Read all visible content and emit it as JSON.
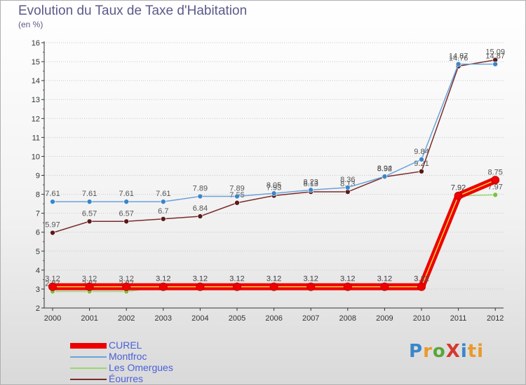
{
  "header": {
    "title": "Evolution du Taux de Taxe d'Habitation",
    "unit": "(en %)"
  },
  "logo": {
    "text": "ProXiti",
    "letters": [
      "P",
      "r",
      "o",
      "X",
      "i",
      "ti"
    ]
  },
  "colors": {
    "axis": "#333333",
    "tick_label": "#333333",
    "grid": "#c8c8c8",
    "value_label": "#555555"
  },
  "chart_data": {
    "type": "line",
    "x": [
      "2000",
      "2001",
      "2002",
      "2003",
      "2004",
      "2005",
      "2006",
      "2007",
      "2008",
      "2009",
      "2010",
      "2011",
      "2012"
    ],
    "ylim": [
      2,
      16
    ],
    "yticks": [
      2,
      3,
      4,
      5,
      6,
      7,
      8,
      9,
      10,
      11,
      12,
      13,
      14,
      15,
      16
    ],
    "grid": "horizontal",
    "legend_position": "bottom-left",
    "series": [
      {
        "name": "Éourres",
        "color": "#7a2b2b",
        "marker": "#5a1a1a",
        "values": [
          5.97,
          6.57,
          6.57,
          6.7,
          6.84,
          7.55,
          7.93,
          8.13,
          8.13,
          8.92,
          9.21,
          14.76,
          15.09
        ],
        "labels": [
          "5.97",
          "6.57",
          "6.57",
          "6.7",
          "6.84",
          "7.55",
          "7.93",
          "8.13",
          "8.13",
          "8.92",
          "9.21",
          "14.76",
          "15.09"
        ]
      },
      {
        "name": "Montfroc",
        "color": "#6aa3d9",
        "marker": "#3a86c8",
        "values": [
          7.61,
          7.61,
          7.61,
          7.61,
          7.89,
          7.89,
          8.05,
          8.23,
          8.36,
          8.94,
          9.84,
          14.87,
          14.87
        ],
        "labels": [
          "7.61",
          "7.61",
          "7.61",
          "7.61",
          "7.89",
          "7.89",
          "8.05",
          "8.23",
          "8.36",
          "8.94",
          "9.84",
          "14.87",
          "14.87"
        ]
      },
      {
        "name": "Les Omergues",
        "color": "#9ad870",
        "marker": "#7cc04a",
        "values": [
          2.87,
          2.87,
          2.87,
          3.12,
          3.12,
          3.12,
          3.12,
          3.12,
          3.12,
          3.12,
          3.12,
          7.92,
          7.97
        ],
        "labels": [
          "2.87",
          "2.87",
          "2.87",
          "3.12",
          "3.12",
          "3.12",
          "3.12",
          "3.12",
          "3.12",
          "3.12",
          "3.12",
          "7.92",
          "7.97"
        ]
      },
      {
        "name": "CUREL",
        "color": "#ee0000",
        "marker": "#ee0000",
        "thick": true,
        "values": [
          3.12,
          3.12,
          3.12,
          3.12,
          3.12,
          3.12,
          3.12,
          3.12,
          3.12,
          3.12,
          3.12,
          7.92,
          8.75
        ],
        "labels": [
          "3.12",
          "3.12",
          "3.12",
          "3.12",
          "3.12",
          "3.12",
          "3.12",
          "3.12",
          "3.12",
          "3.12",
          "3.12",
          "7.92",
          "8.75"
        ]
      }
    ],
    "legend_order": [
      "CUREL",
      "Montfroc",
      "Les Omergues",
      "Éourres"
    ]
  }
}
